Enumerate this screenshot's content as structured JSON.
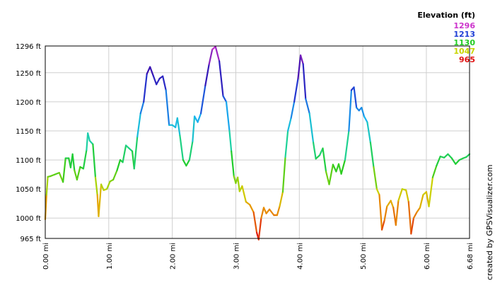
{
  "chart_data": {
    "type": "line",
    "title": "",
    "xlabel": "",
    "ylabel": "",
    "x_unit": "mi",
    "y_unit": "ft",
    "xlim": [
      0,
      6.68
    ],
    "ylim": [
      965,
      1296
    ],
    "x_ticks": [
      "0.00 mi",
      "1.00 mi",
      "2.00 mi",
      "3.00 mi",
      "4.00 mi",
      "5.00 mi",
      "6.00 mi",
      "6.68 mi"
    ],
    "x_tick_values": [
      0,
      1,
      2,
      3,
      4,
      5,
      6,
      6.68
    ],
    "y_ticks": [
      "965 ft",
      "1000 ft",
      "1050 ft",
      "1100 ft",
      "1150 ft",
      "1200 ft",
      "1250 ft",
      "1296 ft"
    ],
    "y_tick_values": [
      965,
      1000,
      1050,
      1100,
      1150,
      1200,
      1250,
      1296
    ],
    "grid": true,
    "legend": {
      "title": "Elevation (ft)",
      "placement": "top-right",
      "entries": [
        {
          "label": "1296",
          "color": "#cc33cc"
        },
        {
          "label": "1213",
          "color": "#1f3fd6"
        },
        {
          "label": "1130",
          "color": "#22cc22"
        },
        {
          "label": "1047",
          "color": "#c8d400"
        },
        {
          "label": "965",
          "color": "#e01010"
        }
      ]
    },
    "color_scale": [
      {
        "value": 965,
        "color": "#e01010"
      },
      {
        "value": 1020,
        "color": "#e8a000"
      },
      {
        "value": 1047,
        "color": "#c8d400"
      },
      {
        "value": 1090,
        "color": "#22cc22"
      },
      {
        "value": 1130,
        "color": "#1ed2a0"
      },
      {
        "value": 1170,
        "color": "#18b4f0"
      },
      {
        "value": 1213,
        "color": "#1f3fd6"
      },
      {
        "value": 1255,
        "color": "#3a10b0"
      },
      {
        "value": 1296,
        "color": "#cc33cc"
      }
    ],
    "credit": "created by GPSVisualizer.com",
    "series": [
      {
        "points": [
          [
            0.0,
            998
          ],
          [
            0.02,
            1040
          ],
          [
            0.04,
            1071
          ],
          [
            0.08,
            1072
          ],
          [
            0.15,
            1075
          ],
          [
            0.22,
            1078
          ],
          [
            0.28,
            1062
          ],
          [
            0.32,
            1103
          ],
          [
            0.37,
            1103
          ],
          [
            0.4,
            1087
          ],
          [
            0.43,
            1110
          ],
          [
            0.46,
            1082
          ],
          [
            0.5,
            1066
          ],
          [
            0.55,
            1088
          ],
          [
            0.6,
            1085
          ],
          [
            0.65,
            1117
          ],
          [
            0.67,
            1146
          ],
          [
            0.7,
            1133
          ],
          [
            0.75,
            1127
          ],
          [
            0.79,
            1070
          ],
          [
            0.82,
            1040
          ],
          [
            0.84,
            1003
          ],
          [
            0.88,
            1058
          ],
          [
            0.92,
            1048
          ],
          [
            0.97,
            1050
          ],
          [
            1.02,
            1063
          ],
          [
            1.07,
            1066
          ],
          [
            1.13,
            1082
          ],
          [
            1.18,
            1100
          ],
          [
            1.22,
            1096
          ],
          [
            1.27,
            1125
          ],
          [
            1.32,
            1120
          ],
          [
            1.37,
            1115
          ],
          [
            1.4,
            1085
          ],
          [
            1.45,
            1140
          ],
          [
            1.5,
            1180
          ],
          [
            1.55,
            1200
          ],
          [
            1.6,
            1248
          ],
          [
            1.65,
            1260
          ],
          [
            1.7,
            1245
          ],
          [
            1.75,
            1230
          ],
          [
            1.8,
            1240
          ],
          [
            1.85,
            1244
          ],
          [
            1.9,
            1220
          ],
          [
            1.95,
            1160
          ],
          [
            2.0,
            1160
          ],
          [
            2.05,
            1156
          ],
          [
            2.08,
            1172
          ],
          [
            2.12,
            1142
          ],
          [
            2.17,
            1100
          ],
          [
            2.22,
            1090
          ],
          [
            2.27,
            1100
          ],
          [
            2.32,
            1132
          ],
          [
            2.35,
            1175
          ],
          [
            2.4,
            1165
          ],
          [
            2.45,
            1180
          ],
          [
            2.52,
            1228
          ],
          [
            2.58,
            1265
          ],
          [
            2.63,
            1290
          ],
          [
            2.68,
            1295
          ],
          [
            2.74,
            1270
          ],
          [
            2.8,
            1210
          ],
          [
            2.85,
            1200
          ],
          [
            2.9,
            1150
          ],
          [
            2.93,
            1115
          ],
          [
            2.97,
            1072
          ],
          [
            3.0,
            1060
          ],
          [
            3.03,
            1070
          ],
          [
            3.06,
            1046
          ],
          [
            3.1,
            1055
          ],
          [
            3.16,
            1028
          ],
          [
            3.22,
            1023
          ],
          [
            3.28,
            1010
          ],
          [
            3.33,
            975
          ],
          [
            3.36,
            963
          ],
          [
            3.4,
            1000
          ],
          [
            3.44,
            1018
          ],
          [
            3.48,
            1008
          ],
          [
            3.53,
            1015
          ],
          [
            3.6,
            1005
          ],
          [
            3.65,
            1005
          ],
          [
            3.69,
            1020
          ],
          [
            3.74,
            1045
          ],
          [
            3.78,
            1105
          ],
          [
            3.82,
            1150
          ],
          [
            3.87,
            1172
          ],
          [
            3.92,
            1200
          ],
          [
            3.98,
            1240
          ],
          [
            4.02,
            1280
          ],
          [
            4.06,
            1265
          ],
          [
            4.1,
            1205
          ],
          [
            4.16,
            1180
          ],
          [
            4.22,
            1130
          ],
          [
            4.26,
            1102
          ],
          [
            4.32,
            1108
          ],
          [
            4.37,
            1120
          ],
          [
            4.42,
            1080
          ],
          [
            4.47,
            1058
          ],
          [
            4.53,
            1092
          ],
          [
            4.58,
            1080
          ],
          [
            4.62,
            1093
          ],
          [
            4.66,
            1076
          ],
          [
            4.72,
            1100
          ],
          [
            4.78,
            1150
          ],
          [
            4.82,
            1220
          ],
          [
            4.86,
            1225
          ],
          [
            4.9,
            1190
          ],
          [
            4.94,
            1185
          ],
          [
            4.98,
            1190
          ],
          [
            5.02,
            1175
          ],
          [
            5.07,
            1165
          ],
          [
            5.12,
            1130
          ],
          [
            5.17,
            1088
          ],
          [
            5.22,
            1050
          ],
          [
            5.26,
            1040
          ],
          [
            5.3,
            980
          ],
          [
            5.34,
            996
          ],
          [
            5.38,
            1020
          ],
          [
            5.44,
            1030
          ],
          [
            5.48,
            1018
          ],
          [
            5.52,
            988
          ],
          [
            5.56,
            1030
          ],
          [
            5.62,
            1050
          ],
          [
            5.68,
            1048
          ],
          [
            5.72,
            1028
          ],
          [
            5.76,
            973
          ],
          [
            5.8,
            1000
          ],
          [
            5.85,
            1010
          ],
          [
            5.9,
            1018
          ],
          [
            5.95,
            1040
          ],
          [
            6.0,
            1045
          ],
          [
            6.04,
            1020
          ],
          [
            6.1,
            1070
          ],
          [
            6.16,
            1090
          ],
          [
            6.22,
            1106
          ],
          [
            6.28,
            1104
          ],
          [
            6.34,
            1110
          ],
          [
            6.4,
            1103
          ],
          [
            6.46,
            1093
          ],
          [
            6.52,
            1100
          ],
          [
            6.58,
            1103
          ],
          [
            6.63,
            1105
          ],
          [
            6.68,
            1110
          ]
        ]
      }
    ]
  }
}
